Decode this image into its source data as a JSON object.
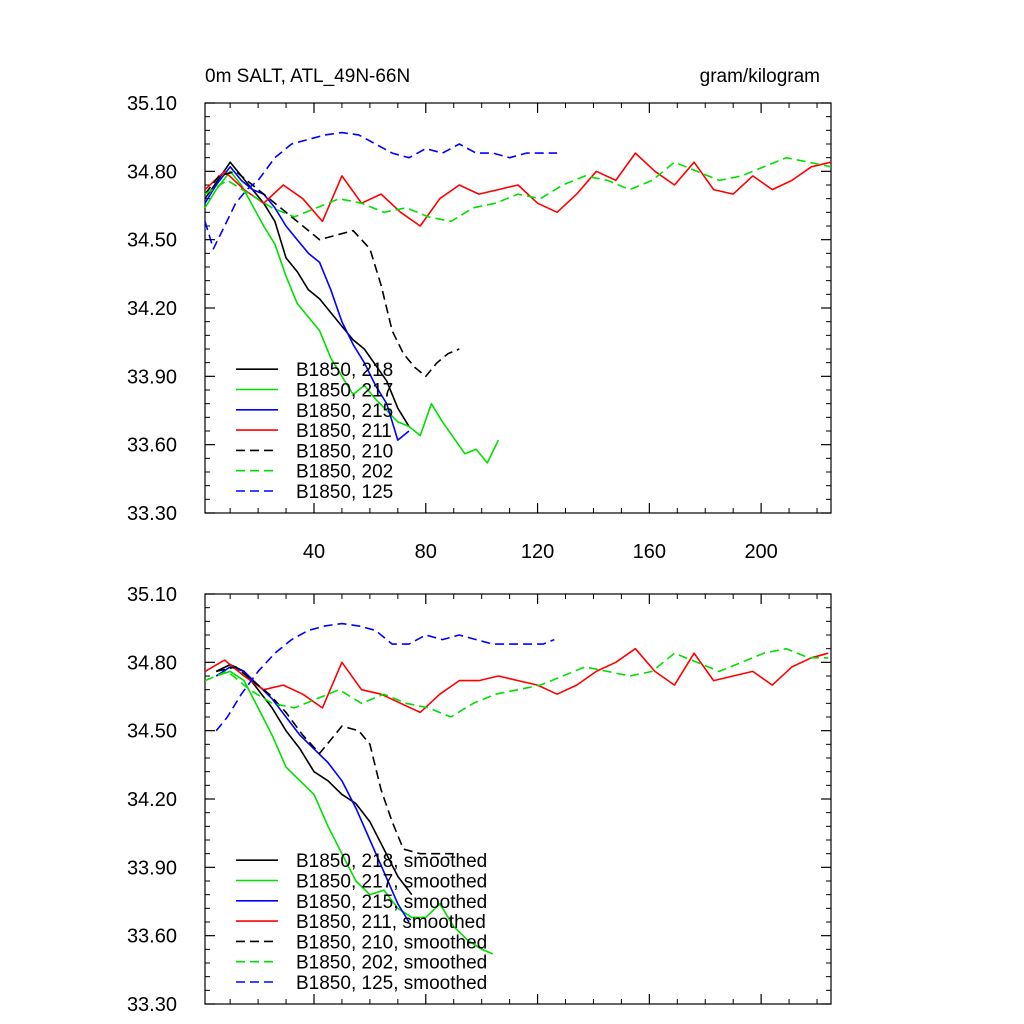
{
  "chart_data": [
    {
      "type": "line",
      "title": "0m SALT, ATL_49N-66N",
      "units": "gram/kilogram",
      "xlabel": "",
      "ylabel": "",
      "xlim": [
        1,
        225
      ],
      "ylim": [
        33.3,
        35.1
      ],
      "xticks": [
        40,
        80,
        120,
        160,
        200
      ],
      "yticks": [
        "35.10",
        "34.80",
        "34.50",
        "34.20",
        "33.90",
        "33.60",
        "33.30"
      ],
      "legend_position": "bottom-left",
      "series": [
        {
          "name": "B1850, 218",
          "color": "#000000",
          "dash": "solid",
          "x": [
            1,
            5,
            10,
            14,
            18,
            22,
            26,
            30,
            34,
            38,
            42,
            46,
            50,
            54,
            58,
            62,
            66,
            70,
            74
          ],
          "y": [
            34.68,
            34.75,
            34.84,
            34.78,
            34.72,
            34.66,
            34.58,
            34.42,
            34.36,
            34.28,
            34.24,
            34.18,
            34.12,
            34.06,
            34.02,
            33.95,
            33.88,
            33.76,
            33.68
          ]
        },
        {
          "name": "B1850, 217",
          "color": "#00e000",
          "dash": "solid",
          "x": [
            1,
            5,
            10,
            14,
            18,
            22,
            26,
            30,
            34,
            38,
            42,
            46,
            50,
            54,
            58,
            62,
            66,
            70,
            74,
            78,
            82,
            86,
            90,
            94,
            98,
            102,
            106
          ],
          "y": [
            34.64,
            34.72,
            34.8,
            34.74,
            34.65,
            34.56,
            34.48,
            34.34,
            34.22,
            34.16,
            34.1,
            33.98,
            33.9,
            33.82,
            33.86,
            33.8,
            33.75,
            33.7,
            33.68,
            33.64,
            33.78,
            33.7,
            33.63,
            33.56,
            33.58,
            33.52,
            33.62
          ]
        },
        {
          "name": "B1850, 215",
          "color": "#0000ff",
          "dash": "solid",
          "x": [
            1,
            5,
            10,
            14,
            18,
            22,
            26,
            30,
            34,
            38,
            42,
            46,
            50,
            54,
            58,
            62,
            66,
            70,
            74
          ],
          "y": [
            34.66,
            34.74,
            34.82,
            34.76,
            34.72,
            34.7,
            34.64,
            34.56,
            34.5,
            34.44,
            34.4,
            34.28,
            34.14,
            34.04,
            33.96,
            33.86,
            33.78,
            33.62,
            33.66
          ]
        },
        {
          "name": "B1850, 211",
          "color": "#ff0000",
          "dash": "solid",
          "x": [
            1,
            8,
            15,
            22,
            29,
            36,
            43,
            50,
            57,
            64,
            71,
            78,
            85,
            92,
            99,
            106,
            113,
            120,
            127,
            134,
            141,
            148,
            155,
            162,
            169,
            176,
            183,
            190,
            197,
            204,
            211,
            218,
            225
          ],
          "y": [
            34.72,
            34.8,
            34.72,
            34.66,
            34.74,
            34.68,
            34.58,
            34.78,
            34.66,
            34.7,
            34.62,
            34.56,
            34.68,
            34.74,
            34.7,
            34.72,
            34.74,
            34.66,
            34.62,
            34.7,
            34.8,
            34.76,
            34.88,
            34.8,
            34.74,
            34.84,
            34.72,
            34.7,
            34.78,
            34.72,
            34.76,
            34.82,
            34.84
          ]
        },
        {
          "name": "B1850, 210",
          "color": "#000000",
          "dash": "dashed",
          "x": [
            1,
            6,
            12,
            18,
            24,
            30,
            36,
            42,
            48,
            54,
            60,
            64,
            68,
            72,
            76,
            80,
            84,
            88,
            92
          ],
          "y": [
            34.7,
            34.78,
            34.8,
            34.74,
            34.68,
            34.62,
            34.56,
            34.5,
            34.52,
            34.54,
            34.46,
            34.3,
            34.1,
            34.0,
            33.94,
            33.9,
            33.96,
            34.0,
            34.02
          ]
        },
        {
          "name": "B1850, 202",
          "color": "#00e000",
          "dash": "dashed",
          "x": [
            1,
            9,
            17,
            25,
            33,
            41,
            49,
            57,
            65,
            73,
            81,
            89,
            97,
            105,
            113,
            121,
            129,
            137,
            145,
            153,
            161,
            169,
            177,
            185,
            193,
            201,
            209,
            217,
            225
          ],
          "y": [
            34.7,
            34.76,
            34.7,
            34.64,
            34.6,
            34.64,
            34.68,
            34.66,
            34.62,
            34.64,
            34.6,
            34.58,
            34.64,
            34.66,
            34.7,
            34.68,
            34.74,
            34.78,
            34.76,
            34.72,
            34.76,
            34.84,
            34.8,
            34.76,
            34.78,
            34.82,
            34.86,
            34.84,
            34.82
          ]
        },
        {
          "name": "B1850, 125",
          "color": "#0000ff",
          "dash": "dashed",
          "x": [
            1,
            4,
            8,
            12,
            16,
            20,
            26,
            32,
            38,
            44,
            50,
            56,
            62,
            68,
            74,
            80,
            86,
            92,
            98,
            104,
            110,
            116,
            122,
            127
          ],
          "y": [
            34.58,
            34.46,
            34.56,
            34.66,
            34.72,
            34.76,
            34.86,
            34.92,
            34.94,
            34.96,
            34.97,
            34.96,
            34.92,
            34.88,
            34.86,
            34.9,
            34.88,
            34.92,
            34.88,
            34.88,
            34.86,
            34.88,
            34.88,
            34.88
          ]
        }
      ]
    },
    {
      "type": "line",
      "title": "",
      "xlim": [
        1,
        225
      ],
      "ylim": [
        33.3,
        35.1
      ],
      "yticks": [
        "35.10",
        "34.80",
        "34.50",
        "34.20",
        "33.90",
        "33.60",
        "33.30"
      ],
      "legend_position": "bottom-left",
      "series": [
        {
          "name": "B1850, 218, smoothed",
          "color": "#000000",
          "dash": "solid",
          "x": [
            5,
            10,
            15,
            20,
            25,
            30,
            35,
            40,
            45,
            50,
            55,
            60,
            65,
            70,
            75
          ],
          "y": [
            34.76,
            34.79,
            34.76,
            34.68,
            34.6,
            34.5,
            34.42,
            34.32,
            34.28,
            34.22,
            34.18,
            34.1,
            33.98,
            33.86,
            33.78
          ]
        },
        {
          "name": "B1850, 217, smoothed",
          "color": "#00e000",
          "dash": "solid",
          "x": [
            5,
            10,
            15,
            20,
            25,
            30,
            35,
            40,
            45,
            50,
            55,
            60,
            65,
            70,
            75,
            80,
            85,
            90,
            95,
            100,
            104
          ],
          "y": [
            34.74,
            34.76,
            34.72,
            34.6,
            34.48,
            34.34,
            34.28,
            34.22,
            34.08,
            33.96,
            33.84,
            33.78,
            33.8,
            33.72,
            33.68,
            33.68,
            33.74,
            33.64,
            33.58,
            33.54,
            33.52
          ]
        },
        {
          "name": "B1850, 215, smoothed",
          "color": "#0000ff",
          "dash": "solid",
          "x": [
            5,
            10,
            15,
            20,
            25,
            30,
            35,
            40,
            45,
            50,
            55,
            60,
            65,
            70,
            74
          ],
          "y": [
            34.74,
            34.78,
            34.76,
            34.7,
            34.64,
            34.56,
            34.48,
            34.42,
            34.36,
            34.28,
            34.16,
            34.02,
            33.88,
            33.74,
            33.66
          ]
        },
        {
          "name": "B1850, 211, smoothed",
          "color": "#ff0000",
          "dash": "solid",
          "x": [
            1,
            8,
            15,
            22,
            29,
            36,
            43,
            50,
            57,
            64,
            71,
            78,
            85,
            92,
            99,
            106,
            113,
            120,
            127,
            134,
            141,
            148,
            155,
            162,
            169,
            176,
            183,
            190,
            197,
            204,
            211,
            218,
            224
          ],
          "y": [
            34.76,
            34.81,
            34.74,
            34.68,
            34.7,
            34.66,
            34.6,
            34.8,
            34.68,
            34.66,
            34.62,
            34.58,
            34.66,
            34.72,
            34.72,
            34.74,
            34.72,
            34.7,
            34.66,
            34.7,
            34.76,
            34.8,
            34.86,
            34.76,
            34.7,
            34.84,
            34.72,
            34.74,
            34.76,
            34.7,
            34.78,
            34.82,
            34.84
          ]
        },
        {
          "name": "B1850, 210, smoothed",
          "color": "#000000",
          "dash": "dashed",
          "x": [
            5,
            12,
            18,
            24,
            30,
            36,
            42,
            46,
            50,
            56,
            60,
            64,
            68,
            72,
            78,
            84,
            90
          ],
          "y": [
            34.76,
            34.78,
            34.72,
            34.66,
            34.58,
            34.48,
            34.4,
            34.46,
            34.52,
            34.5,
            34.44,
            34.24,
            34.1,
            33.98,
            33.96,
            33.96,
            33.96
          ]
        },
        {
          "name": "B1850, 202, smoothed",
          "color": "#00e000",
          "dash": "dashed",
          "x": [
            1,
            9,
            17,
            25,
            33,
            41,
            49,
            57,
            65,
            73,
            81,
            89,
            97,
            105,
            113,
            121,
            129,
            137,
            145,
            153,
            161,
            169,
            177,
            185,
            193,
            201,
            209,
            217,
            224
          ],
          "y": [
            34.72,
            34.76,
            34.68,
            34.62,
            34.6,
            34.64,
            34.68,
            34.62,
            34.66,
            34.62,
            34.6,
            34.56,
            34.62,
            34.66,
            34.68,
            34.7,
            34.74,
            34.78,
            34.76,
            34.74,
            34.76,
            34.84,
            34.8,
            34.76,
            34.8,
            34.84,
            34.86,
            34.82,
            34.82
          ]
        },
        {
          "name": "B1850, 125, smoothed",
          "color": "#0000ff",
          "dash": "dashed",
          "x": [
            5,
            9,
            14,
            20,
            26,
            32,
            38,
            44,
            50,
            56,
            62,
            68,
            74,
            80,
            86,
            92,
            98,
            104,
            110,
            116,
            122,
            126
          ],
          "y": [
            34.5,
            34.56,
            34.66,
            34.76,
            34.84,
            34.9,
            34.94,
            34.96,
            34.97,
            34.96,
            34.94,
            34.88,
            34.88,
            34.92,
            34.9,
            34.92,
            34.9,
            34.88,
            34.88,
            34.88,
            34.88,
            34.9
          ]
        }
      ]
    }
  ]
}
